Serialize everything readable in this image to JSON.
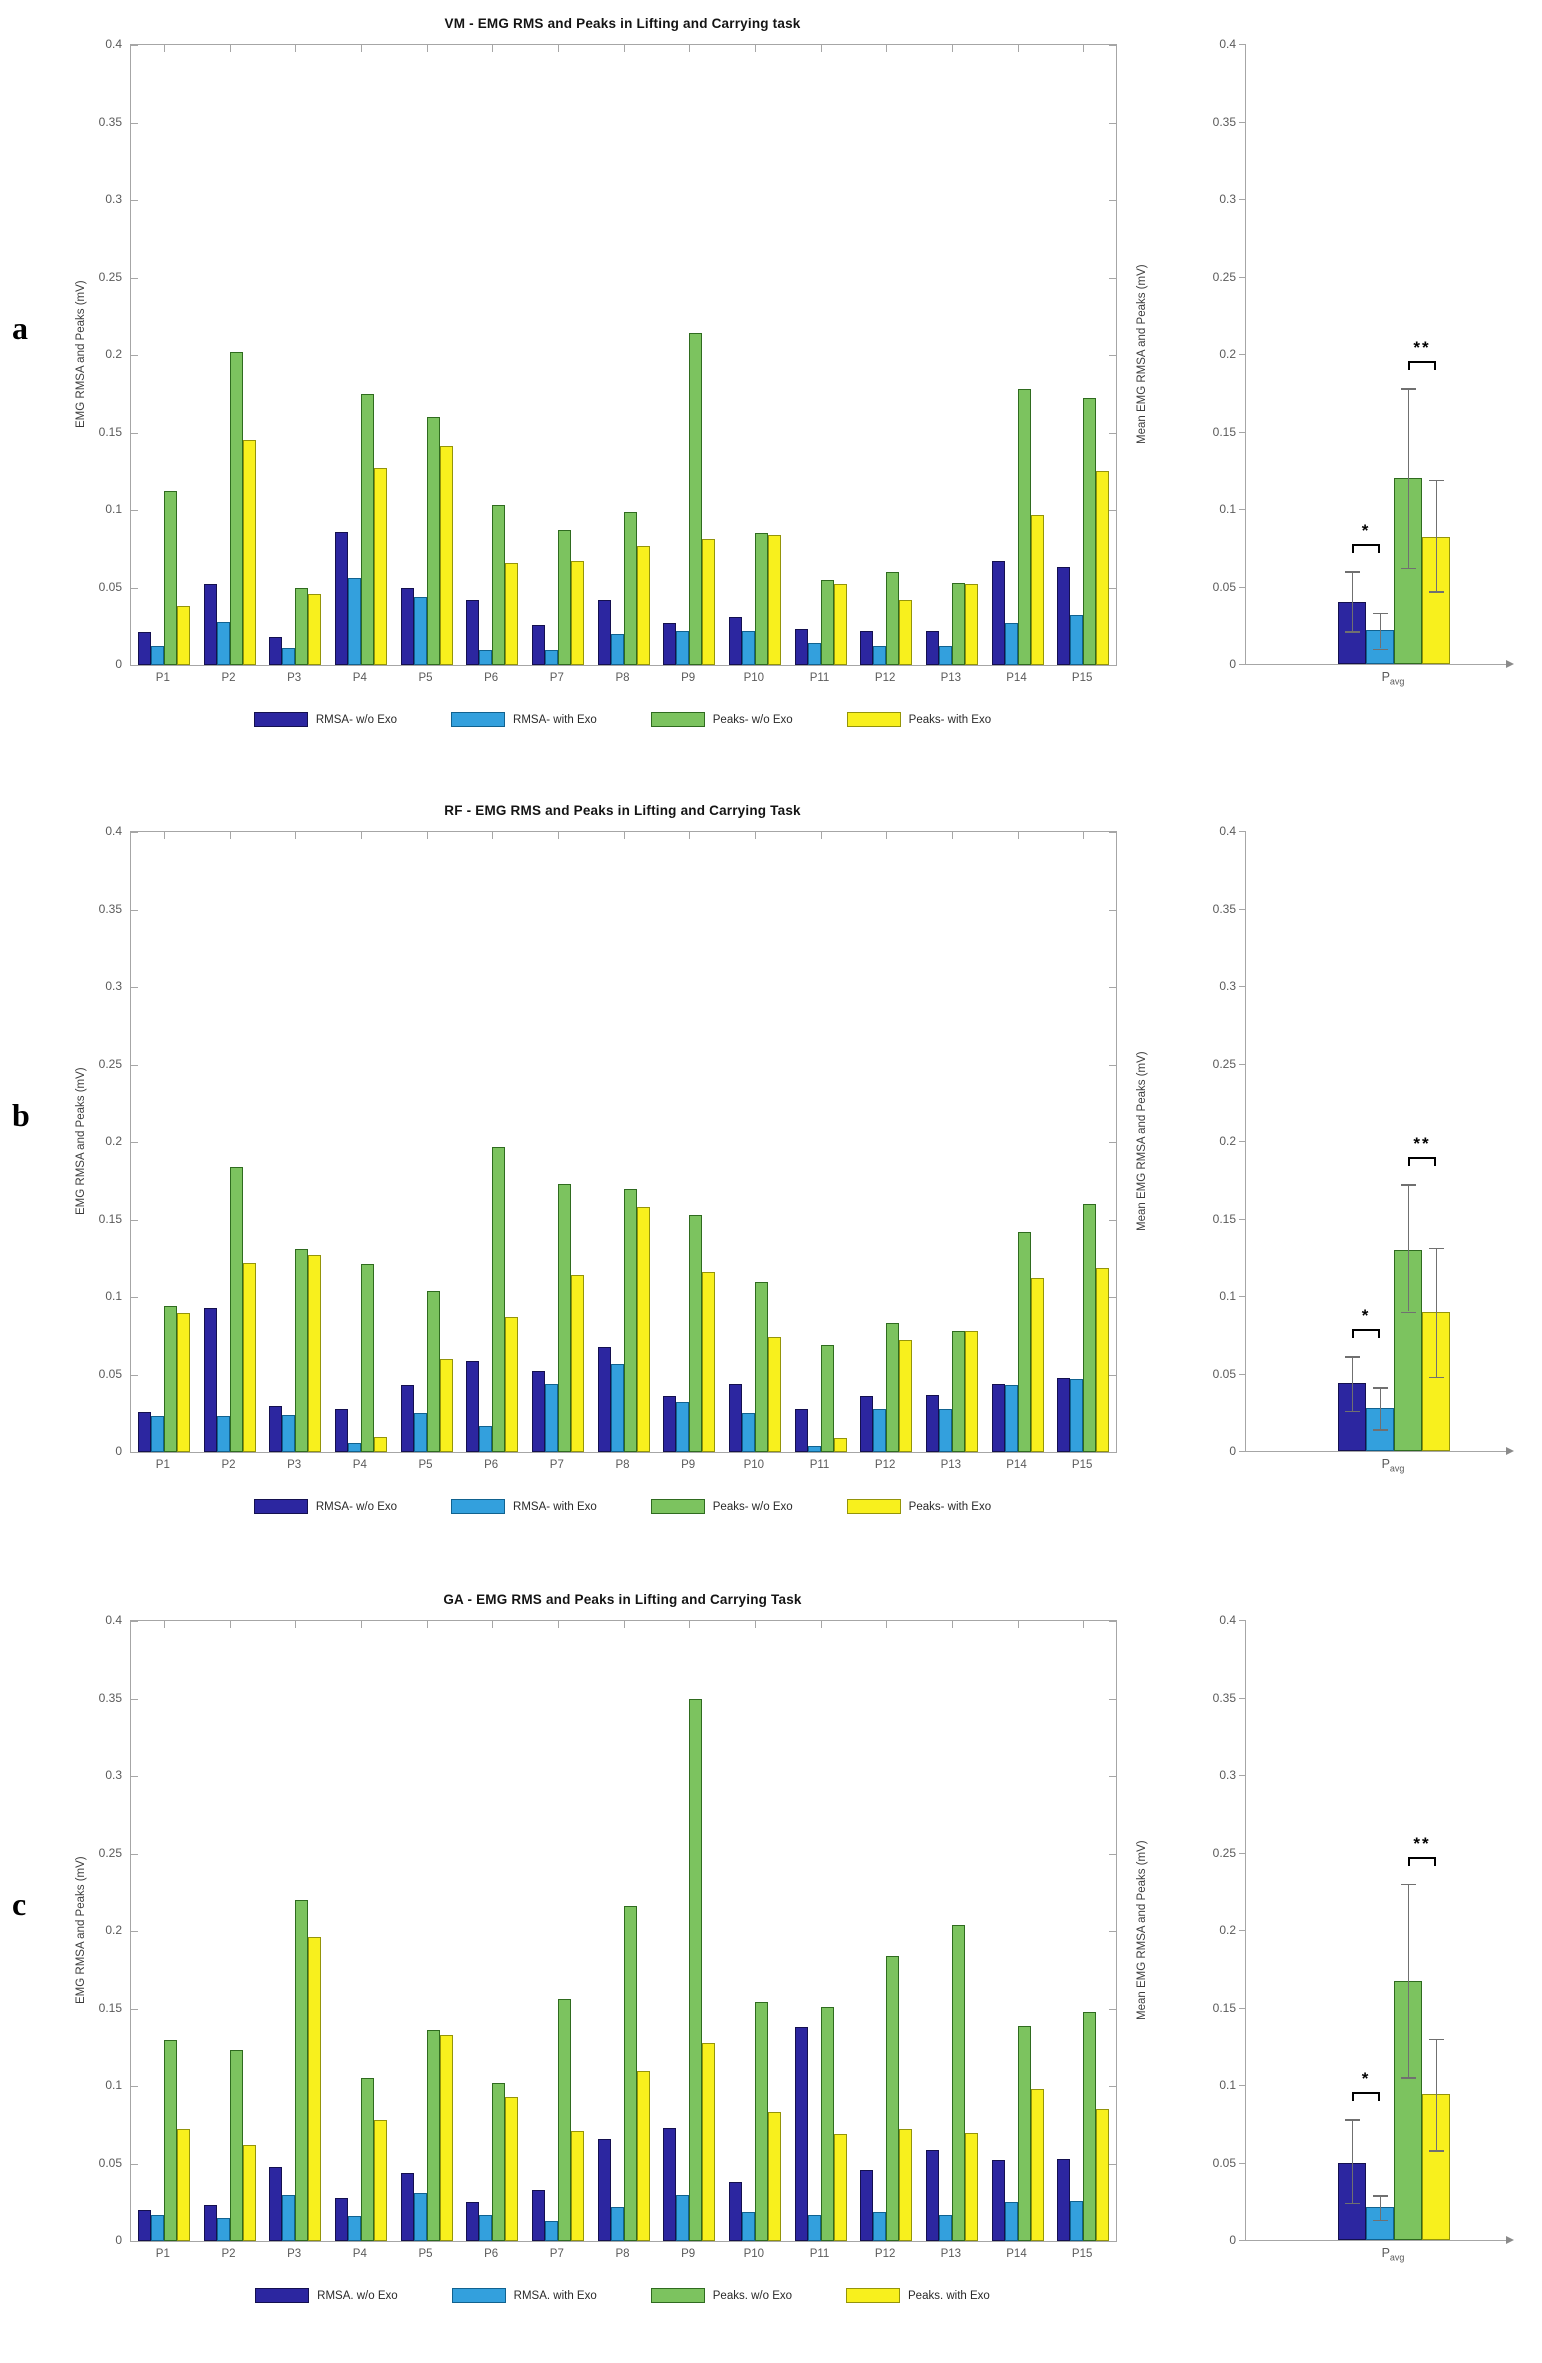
{
  "colors": {
    "rms_wo": "#2c26a0",
    "rms_wo_edge": "#14104f",
    "rms_with": "#33a0dd",
    "rms_with_edge": "#11628f",
    "peaks_wo": "#7cc35f",
    "peaks_wo_edge": "#2f6b1f",
    "peaks_with": "#f8f01d",
    "peaks_with_edge": "#94940a",
    "axis": "#a6a6a6",
    "tick_label": "#5a5a5a",
    "error_bar": "#707070"
  },
  "chart_data": [
    {
      "type": "bar",
      "panel_letter": "a",
      "title": "VM - EMG RMS and Peaks in Lifting and Carrying task",
      "ylabel": "EMG RMSA and Peaks (mV)",
      "ylim": [
        0,
        0.4
      ],
      "grid": false,
      "legend_position": "bottom",
      "ytick_labels": [
        "0",
        "0.05",
        "0.1",
        "0.15",
        "0.2",
        "0.25",
        "0.3",
        "0.35",
        "0.4"
      ],
      "categories": [
        "P1",
        "P2",
        "P3",
        "P4",
        "P5",
        "P6",
        "P7",
        "P8",
        "P9",
        "P10",
        "P11",
        "P12",
        "P13",
        "P14",
        "P15"
      ],
      "series": [
        {
          "name": "RMSA- w/o Exo",
          "color_key": "rms_wo",
          "values": [
            0.021,
            0.052,
            0.018,
            0.086,
            0.05,
            0.042,
            0.026,
            0.042,
            0.027,
            0.031,
            0.023,
            0.022,
            0.022,
            0.067,
            0.063
          ]
        },
        {
          "name": "RMSA- with Exo",
          "color_key": "rms_with",
          "values": [
            0.012,
            0.028,
            0.011,
            0.056,
            0.044,
            0.01,
            0.01,
            0.02,
            0.022,
            0.022,
            0.014,
            0.012,
            0.012,
            0.027,
            0.032
          ]
        },
        {
          "name": "Peaks- w/o Exo",
          "color_key": "peaks_wo",
          "values": [
            0.112,
            0.202,
            0.05,
            0.175,
            0.16,
            0.103,
            0.087,
            0.099,
            0.214,
            0.085,
            0.055,
            0.06,
            0.053,
            0.178,
            0.172
          ]
        },
        {
          "name": "Peaks- with Exo",
          "color_key": "peaks_with",
          "values": [
            0.038,
            0.145,
            0.046,
            0.127,
            0.141,
            0.066,
            0.067,
            0.077,
            0.081,
            0.084,
            0.052,
            0.042,
            0.052,
            0.097,
            0.125
          ]
        }
      ],
      "mean_chart": {
        "ylabel": "Mean EMG RMSA and Peaks (mV)",
        "xlabel_base": "P",
        "xlabel_sub": "avg",
        "ylim": [
          0,
          0.4
        ],
        "means": [
          0.04,
          0.022,
          0.12,
          0.082
        ],
        "err_low": [
          0.021,
          0.01,
          0.062,
          0.047
        ],
        "err_high": [
          0.06,
          0.033,
          0.178,
          0.119
        ],
        "significance": [
          {
            "pair": [
              0,
              1
            ],
            "label": "*"
          },
          {
            "pair": [
              2,
              3
            ],
            "label": "**"
          }
        ]
      }
    },
    {
      "type": "bar",
      "panel_letter": "b",
      "title": "RF - EMG RMS and Peaks in Lifting and Carrying Task",
      "ylabel": "EMG RMSA and Peaks (mV)",
      "ylim": [
        0,
        0.4
      ],
      "grid": false,
      "legend_position": "bottom",
      "ytick_labels": [
        "0",
        "0.05",
        "0.1",
        "0.15",
        "0.2",
        "0.25",
        "0.3",
        "0.35",
        "0.4"
      ],
      "categories": [
        "P1",
        "P2",
        "P3",
        "P4",
        "P5",
        "P6",
        "P7",
        "P8",
        "P9",
        "P10",
        "P11",
        "P12",
        "P13",
        "P14",
        "P15"
      ],
      "series": [
        {
          "name": "RMSA- w/o Exo",
          "color_key": "rms_wo",
          "values": [
            0.026,
            0.093,
            0.03,
            0.028,
            0.043,
            0.059,
            0.052,
            0.068,
            0.036,
            0.044,
            0.028,
            0.036,
            0.037,
            0.044,
            0.048
          ]
        },
        {
          "name": "RMSA- with Exo",
          "color_key": "rms_with",
          "values": [
            0.023,
            0.023,
            0.024,
            0.006,
            0.025,
            0.017,
            0.044,
            0.057,
            0.032,
            0.025,
            0.004,
            0.028,
            0.028,
            0.043,
            0.047
          ]
        },
        {
          "name": "Peaks- w/o Exo",
          "color_key": "peaks_wo",
          "values": [
            0.094,
            0.184,
            0.131,
            0.121,
            0.104,
            0.197,
            0.173,
            0.17,
            0.153,
            0.11,
            0.069,
            0.083,
            0.078,
            0.142,
            0.16
          ]
        },
        {
          "name": "Peaks- with Exo",
          "color_key": "peaks_with",
          "values": [
            0.09,
            0.122,
            0.127,
            0.01,
            0.06,
            0.087,
            0.114,
            0.158,
            0.116,
            0.074,
            0.009,
            0.072,
            0.078,
            0.112,
            0.119
          ]
        }
      ],
      "mean_chart": {
        "ylabel": "Mean EMG RMSA and Peaks (mV)",
        "xlabel_base": "P",
        "xlabel_sub": "avg",
        "ylim": [
          0,
          0.4
        ],
        "means": [
          0.044,
          0.028,
          0.13,
          0.09
        ],
        "err_low": [
          0.026,
          0.014,
          0.09,
          0.048
        ],
        "err_high": [
          0.061,
          0.041,
          0.172,
          0.131
        ],
        "significance": [
          {
            "pair": [
              0,
              1
            ],
            "label": "*"
          },
          {
            "pair": [
              2,
              3
            ],
            "label": "**"
          }
        ]
      }
    },
    {
      "type": "bar",
      "panel_letter": "c",
      "title": "GA - EMG RMS and Peaks in Lifting and Carrying Task",
      "ylabel": "EMG RMSA and Peaks (mV)",
      "ylim": [
        0,
        0.4
      ],
      "grid": false,
      "legend_position": "bottom",
      "ytick_labels": [
        "0",
        "0.05",
        "0.1",
        "0.15",
        "0.2",
        "0.25",
        "0.3",
        "0.35",
        "0.4"
      ],
      "categories": [
        "P1",
        "P2",
        "P3",
        "P4",
        "P5",
        "P6",
        "P7",
        "P8",
        "P9",
        "P10",
        "P11",
        "P12",
        "P13",
        "P14",
        "P15"
      ],
      "series": [
        {
          "name": "RMSA. w/o Exo",
          "color_key": "rms_wo",
          "values": [
            0.02,
            0.023,
            0.048,
            0.028,
            0.044,
            0.025,
            0.033,
            0.066,
            0.073,
            0.038,
            0.138,
            0.046,
            0.059,
            0.052,
            0.053
          ]
        },
        {
          "name": "RMSA. with Exo",
          "color_key": "rms_with",
          "values": [
            0.017,
            0.015,
            0.03,
            0.016,
            0.031,
            0.017,
            0.013,
            0.022,
            0.03,
            0.019,
            0.017,
            0.019,
            0.017,
            0.025,
            0.026
          ]
        },
        {
          "name": "Peaks. w/o Exo",
          "color_key": "peaks_wo",
          "values": [
            0.13,
            0.123,
            0.22,
            0.105,
            0.136,
            0.102,
            0.156,
            0.216,
            0.35,
            0.154,
            0.151,
            0.184,
            0.204,
            0.139,
            0.148
          ]
        },
        {
          "name": "Peaks. with Exo",
          "color_key": "peaks_with",
          "values": [
            0.072,
            0.062,
            0.196,
            0.078,
            0.133,
            0.093,
            0.071,
            0.11,
            0.128,
            0.083,
            0.069,
            0.072,
            0.07,
            0.098,
            0.085
          ]
        }
      ],
      "mean_chart": {
        "ylabel": "Mean EMG RMSA and Peaks (mV)",
        "xlabel_base": "P",
        "xlabel_sub": "avg",
        "ylim": [
          0,
          0.4
        ],
        "means": [
          0.05,
          0.021,
          0.167,
          0.094
        ],
        "err_low": [
          0.024,
          0.013,
          0.105,
          0.058
        ],
        "err_high": [
          0.078,
          0.029,
          0.23,
          0.13
        ],
        "significance": [
          {
            "pair": [
              0,
              1
            ],
            "label": "*"
          },
          {
            "pair": [
              2,
              3
            ],
            "label": "**"
          }
        ]
      }
    }
  ]
}
